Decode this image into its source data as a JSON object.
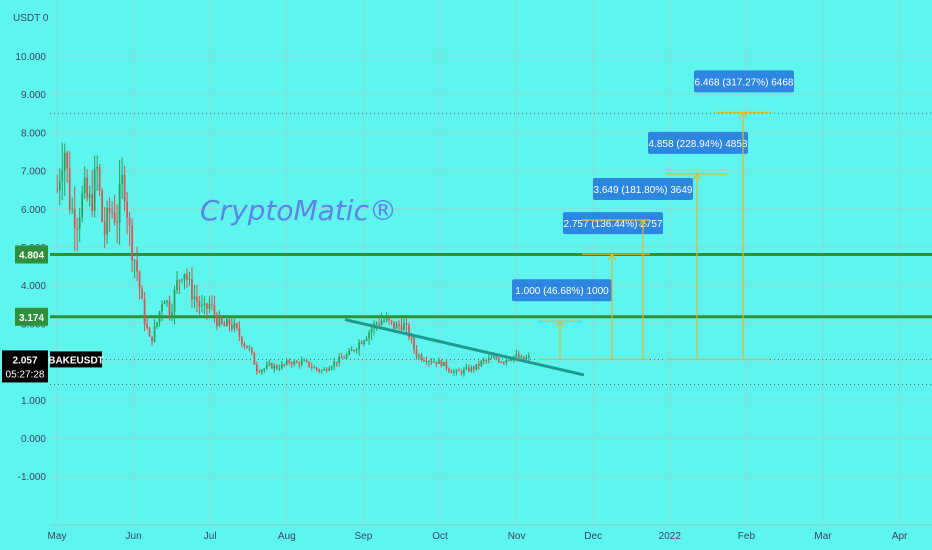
{
  "header": {
    "currency_label": "USDT 0"
  },
  "watermark": "CryptoMatic®",
  "colors": {
    "background": "#5ff5ef",
    "grid": "#8fd8d5",
    "candle_up": "#2e9e5b",
    "candle_down": "#d9534f",
    "level_line": "#2f8f3a",
    "trendline": "#1e9a8f",
    "target_line": "#e2b82a",
    "target_label_bg": "#2d86e0",
    "price_tag_bg": "#000000"
  },
  "chart_data": {
    "type": "candlestick",
    "symbol": "BAKEUSDT",
    "ylim": [
      -1.8,
      11.0
    ],
    "y_ticks": [
      "10.000",
      "9.000",
      "8.000",
      "7.000",
      "6.000",
      "5.000",
      "4.000",
      "3.000",
      "2.000",
      "1.000",
      "0.000",
      "-1.000"
    ],
    "x_ticks": [
      "May",
      "Jun",
      "Jul",
      "Aug",
      "Sep",
      "Oct",
      "Nov",
      "Dec",
      "2022",
      "Feb",
      "Mar",
      "Apr"
    ],
    "close_series": [
      6.5,
      7.8,
      6.0,
      5.8,
      6.4,
      6.1,
      7.0,
      5.3,
      6.0,
      5.8,
      6.9,
      5.2,
      4.4,
      3.2,
      2.5,
      3.0,
      3.8,
      3.3,
      4.0,
      4.5,
      3.9,
      3.6,
      3.3,
      3.5,
      3.1,
      2.9,
      3.0,
      2.8,
      2.5,
      2.3,
      1.8,
      1.8,
      1.9,
      1.85,
      1.9,
      2.0,
      1.95,
      2.0,
      1.9,
      1.8,
      1.75,
      1.9,
      2.0,
      2.1,
      2.2,
      2.4,
      2.6,
      2.8,
      3.0,
      3.1,
      3.0,
      2.9,
      3.0,
      2.7,
      2.2,
      2.1,
      2.05,
      2.0,
      1.95,
      1.8,
      1.7,
      1.75,
      1.8,
      1.85,
      2.0,
      2.05,
      2.1,
      2.0,
      2.1,
      2.15,
      2.05,
      2.1
    ],
    "current_price": "2.057",
    "countdown": "05:27:28",
    "levels": [
      {
        "label": "4.804",
        "value": 4.804
      },
      {
        "label": "3.174",
        "value": 3.174
      }
    ],
    "dotted_levels": [
      8.5,
      2.057,
      1.4
    ],
    "trendline": {
      "from": [
        "Aug 22",
        3.1
      ],
      "to": [
        "Dec 6",
        2.0
      ]
    },
    "targets": [
      {
        "label": "1.000 (46.68%) 1000",
        "value": 3.057
      },
      {
        "label": "2.757 (136.44%) 2757",
        "value": 4.814
      },
      {
        "label": "3.649 (181.80%) 3649",
        "value": 5.706
      },
      {
        "label": "4.858 (228.94%) 4858",
        "value": 6.915
      },
      {
        "label": "6.468 (317.27%) 6468",
        "value": 8.525
      }
    ]
  }
}
